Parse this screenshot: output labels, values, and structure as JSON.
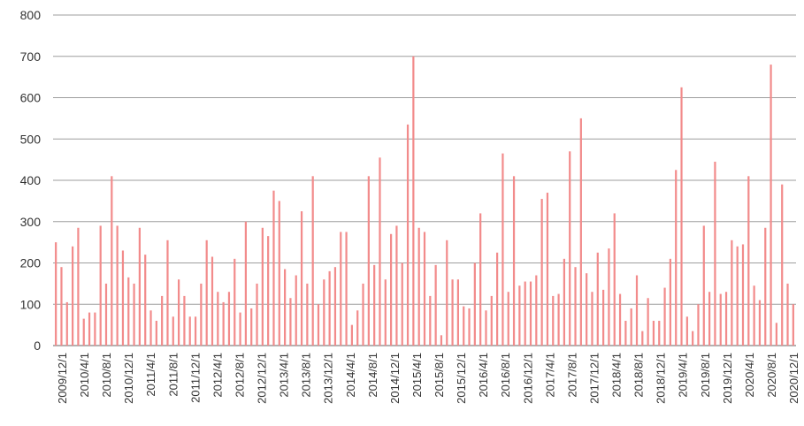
{
  "chart_data": {
    "type": "bar",
    "title": "",
    "xlabel": "",
    "ylabel": "",
    "ylim": [
      0,
      800
    ],
    "yticks": [
      0,
      100,
      200,
      300,
      400,
      500,
      600,
      700,
      800
    ],
    "grid": true,
    "legend": "none",
    "bar_color": "#f28b8b",
    "grid_color": "#9e9e9e",
    "x_tick_labels": [
      "2009/12/1",
      "2010/4/1",
      "2010/8/1",
      "2010/12/1",
      "2011/4/1",
      "2011/8/1",
      "2011/12/1",
      "2012/4/1",
      "2012/8/1",
      "2012/12/1",
      "2013/4/1",
      "2013/8/1",
      "2013/12/1",
      "2014/4/1",
      "2014/8/1",
      "2014/12/1",
      "2015/4/1",
      "2015/8/1",
      "2015/12/1",
      "2016/4/1",
      "2016/8/1",
      "2016/12/1",
      "2017/4/1",
      "2017/8/1",
      "2017/12/1",
      "2018/4/1",
      "2018/8/1",
      "2018/12/1",
      "2019/4/1",
      "2019/8/1",
      "2019/12/1",
      "2020/4/1",
      "2020/8/1",
      "2020/12/1"
    ],
    "values": [
      250,
      190,
      105,
      240,
      285,
      65,
      80,
      80,
      290,
      150,
      410,
      290,
      230,
      165,
      150,
      285,
      220,
      85,
      60,
      120,
      255,
      70,
      160,
      120,
      70,
      70,
      150,
      255,
      215,
      130,
      105,
      130,
      210,
      80,
      300,
      90,
      150,
      285,
      265,
      375,
      350,
      185,
      115,
      170,
      325,
      150,
      410,
      100,
      160,
      180,
      190,
      275,
      275,
      50,
      85,
      150,
      410,
      195,
      455,
      160,
      270,
      290,
      200,
      535,
      700,
      285,
      275,
      120,
      195,
      25,
      255,
      160,
      160,
      95,
      90,
      200,
      320,
      85,
      120,
      225,
      465,
      130,
      410,
      145,
      155,
      155,
      170,
      355,
      370,
      120,
      125,
      210,
      470,
      190,
      550,
      175,
      130,
      225,
      135,
      235,
      320,
      125,
      60,
      90,
      170,
      35,
      115,
      60,
      60,
      140,
      210,
      425,
      625,
      70,
      35,
      100,
      290,
      130,
      445,
      125,
      130,
      255,
      240,
      245,
      410,
      145,
      110,
      285,
      680,
      55,
      390,
      150,
      100
    ]
  }
}
